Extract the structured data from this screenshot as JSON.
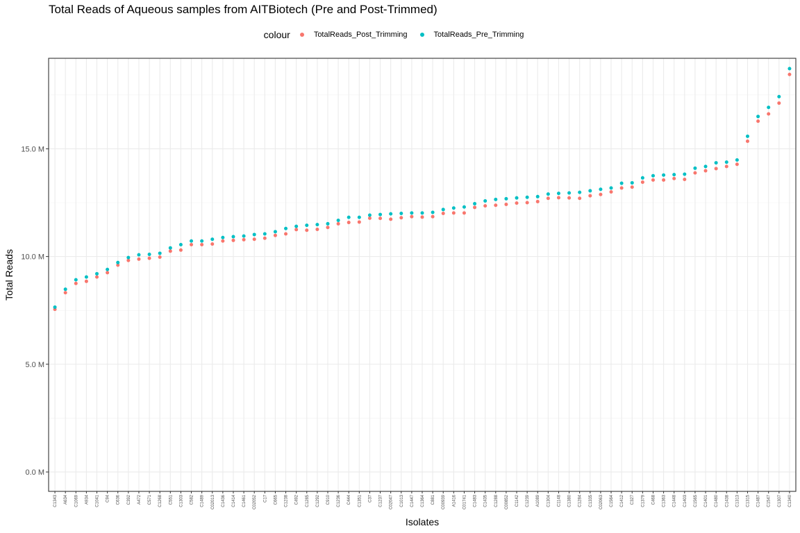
{
  "chart_data": {
    "type": "scatter",
    "title": "Total Reads of Aqueous samples from AITBiotech (Pre and Post-Trimmed)",
    "xlabel": "Isolates",
    "ylabel": "Total Reads",
    "legend_title": "colour",
    "legend_position": "top",
    "grid": true,
    "ylim": [
      -0.9,
      19.2
    ],
    "y_ticks": [
      0,
      5,
      10,
      15
    ],
    "y_tick_labels": [
      "0.0 M",
      "5.0 M",
      "10.0 M",
      "15.0 M"
    ],
    "categories": [
      "C1343",
      "A634",
      "C1069",
      "A934",
      "C1041",
      "C94",
      "C636",
      "C392",
      "A472",
      "C571",
      "C1268",
      "C551",
      "C1303",
      "C582",
      "C1489",
      "C02013",
      "C1436",
      "C1414",
      "C1461",
      "C02052",
      "C17",
      "C665",
      "C1238",
      "C492",
      "C1285",
      "C1292",
      "C910",
      "C1236",
      "C444",
      "C1351",
      "C37",
      "C1237",
      "C02047",
      "C1013",
      "C1447",
      "C1364",
      "C881",
      "C00939",
      "A1416",
      "C01741",
      "C1483",
      "C1435",
      "C1288",
      "C00852",
      "C1142",
      "C1239",
      "A1089",
      "C1304",
      "C1148",
      "C1380",
      "C1284",
      "C1335",
      "C02063",
      "C1564",
      "C1412",
      "C327",
      "C1379",
      "C468",
      "C1363",
      "C1448",
      "C1403",
      "C1565",
      "C1401",
      "C1480",
      "C1438",
      "C1313",
      "C1315",
      "C1487",
      "C1547",
      "C1307",
      "C1340"
    ],
    "series": [
      {
        "name": "TotalReads_Post_Trimming",
        "color": "#F8766D",
        "values": [
          7.55,
          8.32,
          8.75,
          8.85,
          9.05,
          9.25,
          9.6,
          9.82,
          9.88,
          9.92,
          9.97,
          10.25,
          10.3,
          10.55,
          10.55,
          10.58,
          10.72,
          10.75,
          10.78,
          10.8,
          10.85,
          10.98,
          11.05,
          11.25,
          11.22,
          11.26,
          11.35,
          11.52,
          11.58,
          11.6,
          11.78,
          11.77,
          11.73,
          11.8,
          11.85,
          11.83,
          11.85,
          12.0,
          12.02,
          12.02,
          12.28,
          12.35,
          12.38,
          12.42,
          12.48,
          12.5,
          12.55,
          12.7,
          12.73,
          12.72,
          12.7,
          12.82,
          12.88,
          13.0,
          13.18,
          13.22,
          13.45,
          13.55,
          13.55,
          13.62,
          13.58,
          13.88,
          13.98,
          14.08,
          14.18,
          14.28,
          15.35,
          16.28,
          16.62,
          17.12,
          18.45
        ]
      },
      {
        "name": "TotalReads_Pre_Trimming",
        "color": "#00BFC4",
        "values": [
          7.65,
          8.48,
          8.92,
          9.05,
          9.2,
          9.4,
          9.72,
          9.95,
          10.08,
          10.1,
          10.15,
          10.4,
          10.55,
          10.72,
          10.72,
          10.8,
          10.88,
          10.92,
          10.95,
          11.02,
          11.05,
          11.15,
          11.3,
          11.4,
          11.45,
          11.48,
          11.52,
          11.68,
          11.82,
          11.82,
          11.92,
          11.95,
          11.98,
          12.0,
          12.02,
          12.02,
          12.05,
          12.18,
          12.25,
          12.3,
          12.45,
          12.58,
          12.65,
          12.68,
          12.72,
          12.75,
          12.78,
          12.9,
          12.93,
          12.95,
          12.98,
          13.05,
          13.12,
          13.18,
          13.4,
          13.42,
          13.65,
          13.75,
          13.78,
          13.8,
          13.82,
          14.1,
          14.18,
          14.35,
          14.38,
          14.48,
          15.58,
          16.5,
          16.92,
          17.42,
          18.72
        ]
      }
    ]
  }
}
